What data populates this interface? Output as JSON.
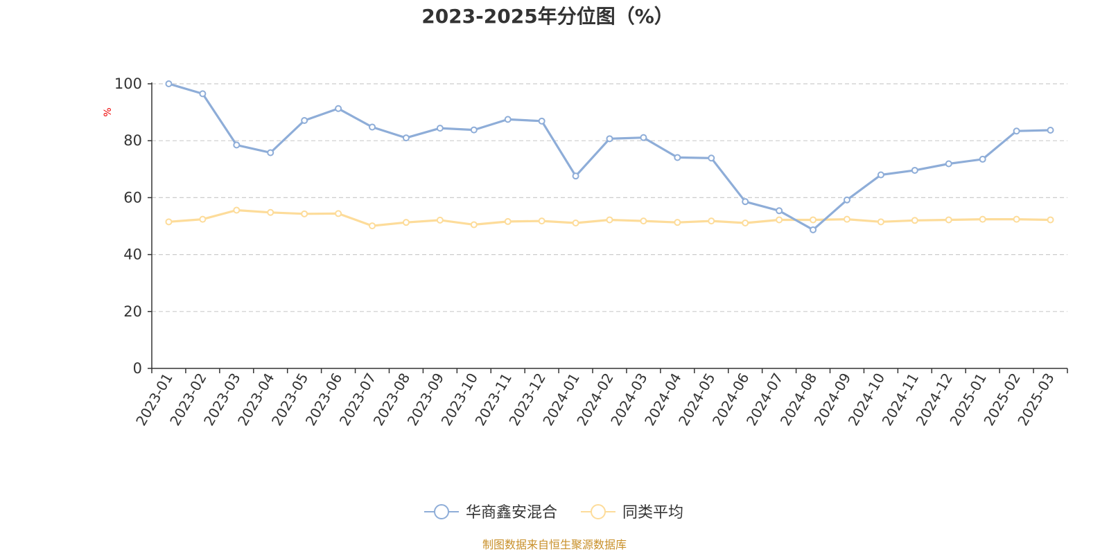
{
  "chart_data": {
    "type": "line",
    "title": "2023-2025年分位图（%）",
    "ylabel": "%",
    "ylim": [
      0,
      100
    ],
    "yticks": [
      "0",
      "20",
      "40",
      "60",
      "80",
      "100"
    ],
    "grid": true,
    "legend_position": "bottom",
    "categories": [
      "2023-01",
      "2023-02",
      "2023-03",
      "2023-04",
      "2023-05",
      "2023-06",
      "2023-07",
      "2023-08",
      "2023-09",
      "2023-10",
      "2023-11",
      "2023-12",
      "2024-01",
      "2024-02",
      "2024-03",
      "2024-04",
      "2024-05",
      "2024-06",
      "2024-07",
      "2024-08",
      "2024-09",
      "2024-10",
      "2024-11",
      "2024-12",
      "2025-01",
      "2025-02",
      "2025-03"
    ],
    "series": [
      {
        "name": "华商鑫安混合",
        "color": "#8eadd8",
        "values": [
          100,
          96.5,
          78.5,
          75.8,
          87.1,
          91.3,
          84.8,
          81.0,
          84.4,
          83.8,
          87.5,
          86.9,
          67.6,
          80.7,
          81.1,
          74.1,
          73.9,
          58.6,
          55.4,
          48.7,
          59.2,
          68.0,
          69.6,
          71.9,
          73.5,
          83.4,
          83.7
        ]
      },
      {
        "name": "同类平均",
        "color": "#fddc9a",
        "values": [
          51.5,
          52.4,
          55.6,
          54.8,
          54.3,
          54.4,
          50.1,
          51.3,
          52.1,
          50.5,
          51.6,
          51.8,
          51.1,
          52.2,
          51.8,
          51.3,
          51.8,
          51.1,
          52.2,
          52.2,
          52.4,
          51.5,
          52.0,
          52.2,
          52.4,
          52.4,
          52.2
        ]
      }
    ],
    "source_note": "制图数据来自恒生聚源数据库"
  }
}
